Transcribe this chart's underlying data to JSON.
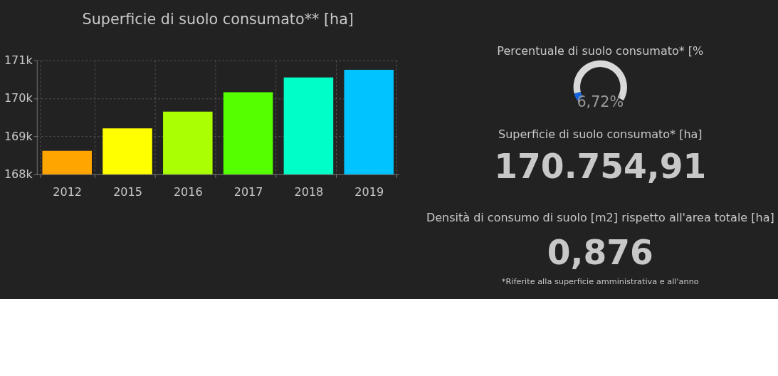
{
  "chart_data": [
    {
      "type": "bar",
      "title": "Superficie di suolo consumato** [ha]",
      "categories": [
        "2012",
        "2015",
        "2016",
        "2017",
        "2018",
        "2019"
      ],
      "values": [
        168620,
        169210,
        169650,
        170160,
        170550,
        170750
      ],
      "colors": [
        "#ffa500",
        "#ffff00",
        "#aaff00",
        "#55ff00",
        "#00ffc8",
        "#00c3ff"
      ],
      "ylim": [
        168000,
        171000
      ],
      "yticks": [
        {
          "value": 168000,
          "label": "168k"
        },
        {
          "value": 169000,
          "label": "169k"
        },
        {
          "value": 170000,
          "label": "170k"
        },
        {
          "value": 171000,
          "label": "171k"
        }
      ],
      "grid": true
    },
    {
      "type": "donut",
      "title": "Percentuale di suolo consumato* [%",
      "categories": [
        null,
        null
      ],
      "values": [
        6.72,
        93.28
      ],
      "colors": [
        "#1565e0",
        "#d9d9d9"
      ],
      "annotations": [
        "6,72%"
      ]
    },
    {
      "type": "other",
      "title": "Superficie di suolo consumato* [ha]",
      "annotations": [
        "170.754,91"
      ]
    },
    {
      "type": "other",
      "title": "Densità di consumo di suolo [m2] rispetto all'area totale [ha]",
      "annotations": [
        "0,876",
        "*Riferite alla superficie amministrativa e all'anno"
      ]
    }
  ]
}
